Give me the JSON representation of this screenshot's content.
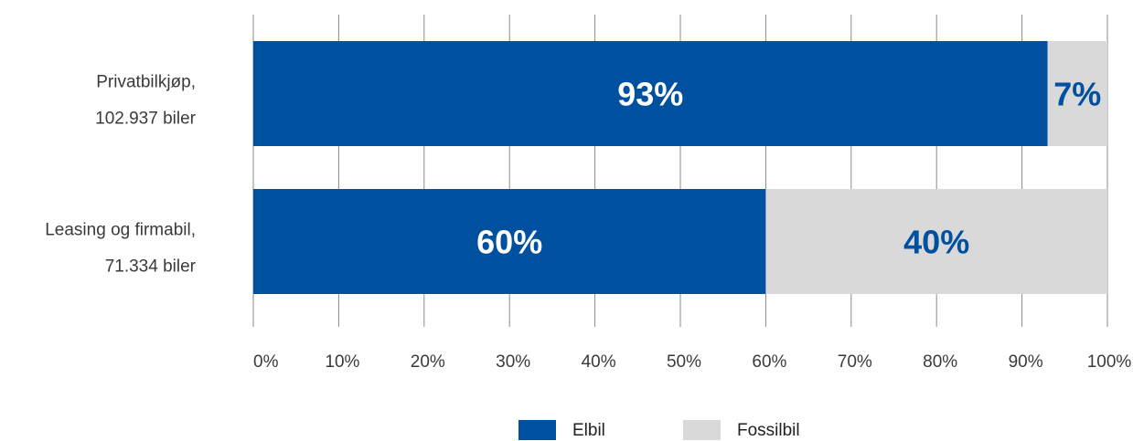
{
  "chart_data": {
    "type": "bar",
    "orientation": "horizontal",
    "stacked": true,
    "categories": [
      [
        "Privatbilkjøp,",
        "102.937 biler"
      ],
      [
        "Leasing og firmabil,",
        "71.334 biler"
      ]
    ],
    "series": [
      {
        "name": "Elbil",
        "color": "#0050a0",
        "values": [
          93,
          60
        ],
        "labels": [
          "93%",
          "60%"
        ],
        "label_color": "#ffffff"
      },
      {
        "name": "Fossilbil",
        "color": "#d9d9d9",
        "values": [
          7,
          40
        ],
        "labels": [
          "7%",
          "40%"
        ],
        "label_color": "#0050a0"
      }
    ],
    "x_ticks": [
      "0%",
      "10%",
      "20%",
      "30%",
      "40%",
      "50%",
      "60%",
      "70%",
      "80%",
      "90%",
      "100%"
    ],
    "xlim": [
      0,
      100
    ],
    "grid": "vertical",
    "legend": "bottom-center"
  }
}
